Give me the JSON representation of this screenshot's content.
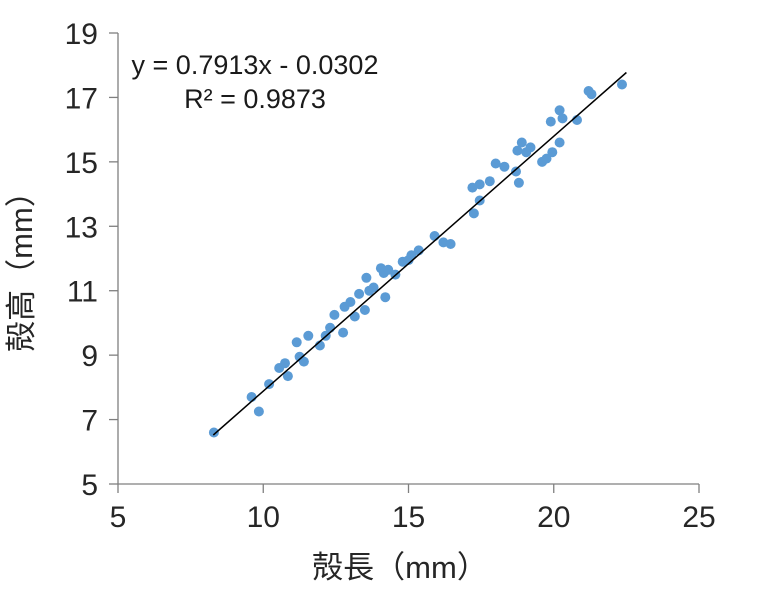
{
  "chart_data": {
    "type": "scatter",
    "title": "",
    "xlabel": "殻長（mm）",
    "ylabel": "殻高（mm）",
    "xlim": [
      5,
      25
    ],
    "ylim": [
      5,
      19
    ],
    "xticks": [
      "5",
      "10",
      "15",
      "20",
      "25"
    ],
    "xtick_values": [
      5,
      10,
      15,
      20,
      25
    ],
    "yticks": [
      "5",
      "7",
      "9",
      "11",
      "13",
      "15",
      "17",
      "19"
    ],
    "ytick_values": [
      5,
      7,
      9,
      11,
      13,
      15,
      17,
      19
    ],
    "grid": false,
    "legend": "none",
    "points": [
      [
        8.3,
        6.6
      ],
      [
        9.6,
        7.7
      ],
      [
        9.85,
        7.25
      ],
      [
        10.2,
        8.1
      ],
      [
        10.55,
        8.6
      ],
      [
        10.75,
        8.75
      ],
      [
        10.85,
        8.35
      ],
      [
        11.15,
        9.4
      ],
      [
        11.25,
        8.95
      ],
      [
        11.4,
        8.8
      ],
      [
        11.55,
        9.6
      ],
      [
        11.95,
        9.3
      ],
      [
        12.15,
        9.6
      ],
      [
        12.3,
        9.85
      ],
      [
        12.45,
        10.25
      ],
      [
        12.75,
        9.7
      ],
      [
        12.8,
        10.5
      ],
      [
        13.0,
        10.65
      ],
      [
        13.15,
        10.2
      ],
      [
        13.3,
        10.9
      ],
      [
        13.5,
        10.4
      ],
      [
        13.55,
        11.4
      ],
      [
        13.65,
        11.0
      ],
      [
        13.8,
        11.1
      ],
      [
        14.05,
        11.7
      ],
      [
        14.15,
        11.55
      ],
      [
        14.2,
        10.8
      ],
      [
        14.3,
        11.65
      ],
      [
        14.55,
        11.5
      ],
      [
        14.8,
        11.9
      ],
      [
        15.0,
        11.95
      ],
      [
        15.1,
        12.1
      ],
      [
        15.35,
        12.25
      ],
      [
        15.9,
        12.7
      ],
      [
        16.2,
        12.5
      ],
      [
        16.45,
        12.45
      ],
      [
        17.2,
        14.2
      ],
      [
        17.25,
        13.4
      ],
      [
        17.45,
        13.8
      ],
      [
        17.45,
        14.3
      ],
      [
        17.8,
        14.4
      ],
      [
        18.0,
        14.95
      ],
      [
        18.3,
        14.85
      ],
      [
        18.7,
        14.7
      ],
      [
        18.8,
        14.35
      ],
      [
        18.75,
        15.35
      ],
      [
        18.9,
        15.6
      ],
      [
        19.05,
        15.3
      ],
      [
        19.2,
        15.45
      ],
      [
        19.6,
        15.0
      ],
      [
        19.75,
        15.1
      ],
      [
        19.95,
        15.3
      ],
      [
        20.2,
        15.6
      ],
      [
        19.9,
        16.25
      ],
      [
        20.2,
        16.6
      ],
      [
        20.3,
        16.35
      ],
      [
        20.8,
        16.3
      ],
      [
        21.2,
        17.2
      ],
      [
        21.3,
        17.1
      ],
      [
        22.35,
        17.4
      ]
    ],
    "trendline": {
      "slope": 0.7913,
      "intercept": -0.0302,
      "x_range": [
        8.28,
        22.5
      ],
      "label_line1": "y = 0.7913x - 0.0302",
      "label_line2": "R² = 0.9873"
    },
    "colors": {
      "marker": "#5B9BD5",
      "trendline": "#000000",
      "axis": "#7F7F7F",
      "text": "#262626"
    }
  }
}
